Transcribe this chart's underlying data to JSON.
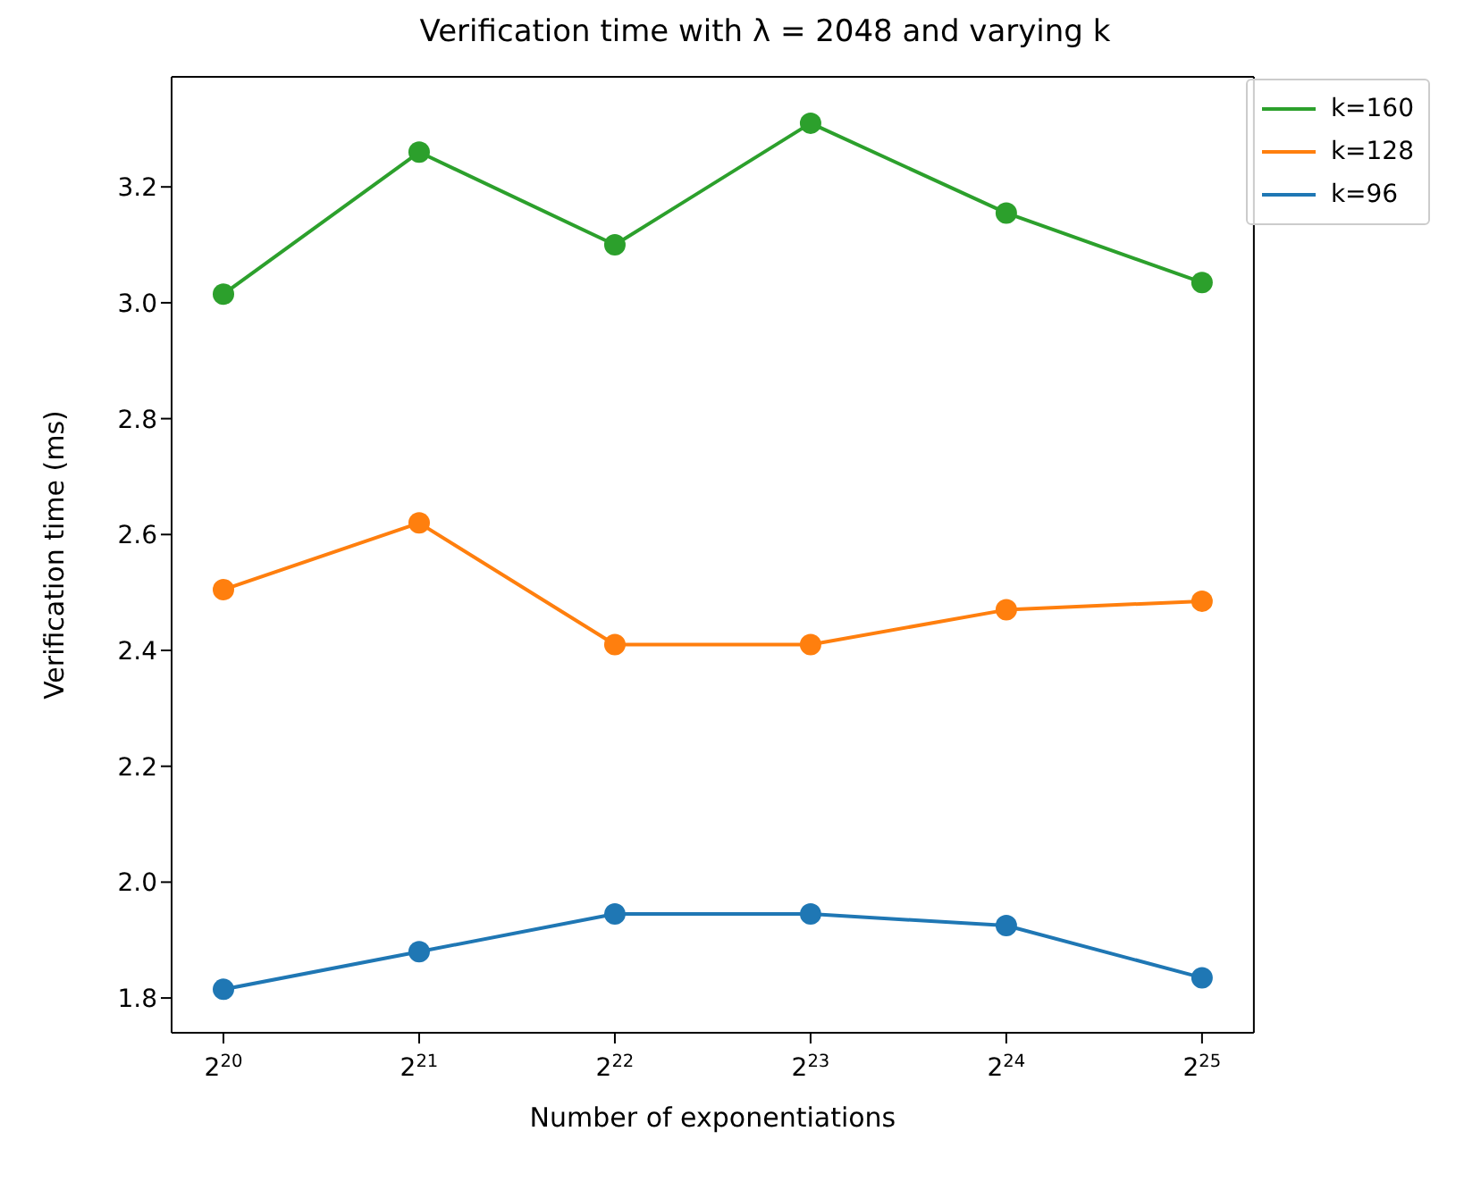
{
  "chart_data": {
    "type": "line",
    "title": "Verification time with λ = 2048 and varying k",
    "xlabel": "Number of exponentiations",
    "ylabel": "Verification time (ms)",
    "categories": [
      "2$^{20}$",
      "2$^{21}$",
      "2$^{22}$",
      "2$^{23}$",
      "2$^{24}$",
      "2$^{25}$"
    ],
    "series": [
      {
        "name": "k=160",
        "color": "#2ca02c",
        "values": [
          3.015,
          3.26,
          3.1,
          3.31,
          3.155,
          3.035
        ]
      },
      {
        "name": "k=128",
        "color": "#ff7f0e",
        "values": [
          2.505,
          2.62,
          2.41,
          2.41,
          2.47,
          2.485
        ]
      },
      {
        "name": "k=96",
        "color": "#1f77b4",
        "values": [
          1.815,
          1.88,
          1.945,
          1.945,
          1.925,
          1.835
        ]
      }
    ],
    "ylim": [
      1.74,
      3.39
    ],
    "yticks": [
      1.8,
      {
        "value": 2,
        "label": "2.0"
      },
      2.2,
      2.4,
      2.6,
      2.8,
      {
        "value": 3,
        "label": "3.0"
      },
      3.2
    ],
    "grid": false,
    "legend": "top right",
    "marker": "circle",
    "line_style": "solid"
  }
}
